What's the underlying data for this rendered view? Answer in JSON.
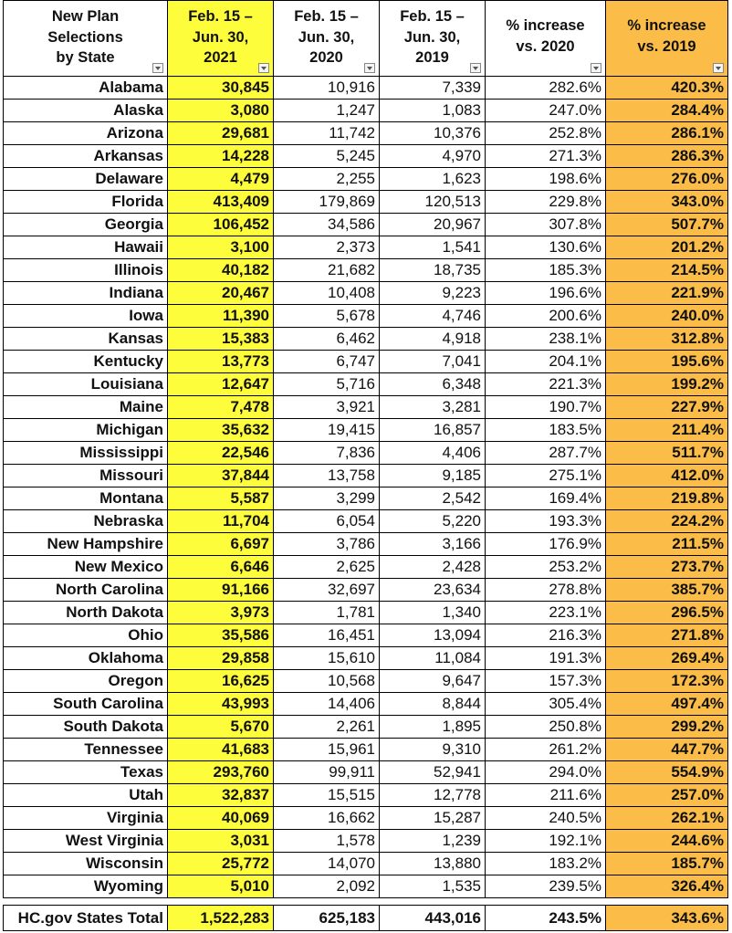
{
  "table": {
    "header": [
      [
        "New Plan",
        "Selections",
        "by State"
      ],
      [
        "Feb. 15 –",
        "Jun. 30,",
        "2021"
      ],
      [
        "Feb. 15 –",
        "Jun. 30,",
        "2020"
      ],
      [
        "Feb. 15 –",
        "Jun. 30,",
        "2019"
      ],
      [
        "% increase",
        "vs. 2020"
      ],
      [
        "% increase",
        "vs. 2019"
      ]
    ],
    "rows": [
      [
        "Alabama",
        "30,845",
        "10,916",
        "7,339",
        "282.6%",
        "420.3%"
      ],
      [
        "Alaska",
        "3,080",
        "1,247",
        "1,083",
        "247.0%",
        "284.4%"
      ],
      [
        "Arizona",
        "29,681",
        "11,742",
        "10,376",
        "252.8%",
        "286.1%"
      ],
      [
        "Arkansas",
        "14,228",
        "5,245",
        "4,970",
        "271.3%",
        "286.3%"
      ],
      [
        "Delaware",
        "4,479",
        "2,255",
        "1,623",
        "198.6%",
        "276.0%"
      ],
      [
        "Florida",
        "413,409",
        "179,869",
        "120,513",
        "229.8%",
        "343.0%"
      ],
      [
        "Georgia",
        "106,452",
        "34,586",
        "20,967",
        "307.8%",
        "507.7%"
      ],
      [
        "Hawaii",
        "3,100",
        "2,373",
        "1,541",
        "130.6%",
        "201.2%"
      ],
      [
        "Illinois",
        "40,182",
        "21,682",
        "18,735",
        "185.3%",
        "214.5%"
      ],
      [
        "Indiana",
        "20,467",
        "10,408",
        "9,223",
        "196.6%",
        "221.9%"
      ],
      [
        "Iowa",
        "11,390",
        "5,678",
        "4,746",
        "200.6%",
        "240.0%"
      ],
      [
        "Kansas",
        "15,383",
        "6,462",
        "4,918",
        "238.1%",
        "312.8%"
      ],
      [
        "Kentucky",
        "13,773",
        "6,747",
        "7,041",
        "204.1%",
        "195.6%"
      ],
      [
        "Louisiana",
        "12,647",
        "5,716",
        "6,348",
        "221.3%",
        "199.2%"
      ],
      [
        "Maine",
        "7,478",
        "3,921",
        "3,281",
        "190.7%",
        "227.9%"
      ],
      [
        "Michigan",
        "35,632",
        "19,415",
        "16,857",
        "183.5%",
        "211.4%"
      ],
      [
        "Mississippi",
        "22,546",
        "7,836",
        "4,406",
        "287.7%",
        "511.7%"
      ],
      [
        "Missouri",
        "37,844",
        "13,758",
        "9,185",
        "275.1%",
        "412.0%"
      ],
      [
        "Montana",
        "5,587",
        "3,299",
        "2,542",
        "169.4%",
        "219.8%"
      ],
      [
        "Nebraska",
        "11,704",
        "6,054",
        "5,220",
        "193.3%",
        "224.2%"
      ],
      [
        "New Hampshire",
        "6,697",
        "3,786",
        "3,166",
        "176.9%",
        "211.5%"
      ],
      [
        "New Mexico",
        "6,646",
        "2,625",
        "2,428",
        "253.2%",
        "273.7%"
      ],
      [
        "North Carolina",
        "91,166",
        "32,697",
        "23,634",
        "278.8%",
        "385.7%"
      ],
      [
        "North Dakota",
        "3,973",
        "1,781",
        "1,340",
        "223.1%",
        "296.5%"
      ],
      [
        "Ohio",
        "35,586",
        "16,451",
        "13,094",
        "216.3%",
        "271.8%"
      ],
      [
        "Oklahoma",
        "29,858",
        "15,610",
        "11,084",
        "191.3%",
        "269.4%"
      ],
      [
        "Oregon",
        "16,625",
        "10,568",
        "9,647",
        "157.3%",
        "172.3%"
      ],
      [
        "South Carolina",
        "43,993",
        "14,406",
        "8,844",
        "305.4%",
        "497.4%"
      ],
      [
        "South Dakota",
        "5,670",
        "2,261",
        "1,895",
        "250.8%",
        "299.2%"
      ],
      [
        "Tennessee",
        "41,683",
        "15,961",
        "9,310",
        "261.2%",
        "447.7%"
      ],
      [
        "Texas",
        "293,760",
        "99,911",
        "52,941",
        "294.0%",
        "554.9%"
      ],
      [
        "Utah",
        "32,837",
        "15,515",
        "12,778",
        "211.6%",
        "257.0%"
      ],
      [
        "Virginia",
        "40,069",
        "16,662",
        "15,287",
        "240.5%",
        "262.1%"
      ],
      [
        "West Virginia",
        "3,031",
        "1,578",
        "1,239",
        "192.1%",
        "244.6%"
      ],
      [
        "Wisconsin",
        "25,772",
        "14,070",
        "13,880",
        "183.2%",
        "185.7%"
      ],
      [
        "Wyoming",
        "5,010",
        "2,092",
        "1,535",
        "239.5%",
        "326.4%"
      ]
    ],
    "total": [
      "HC.gov States Total",
      "1,522,283",
      "625,183",
      "443,016",
      "243.5%",
      "343.6%"
    ]
  }
}
